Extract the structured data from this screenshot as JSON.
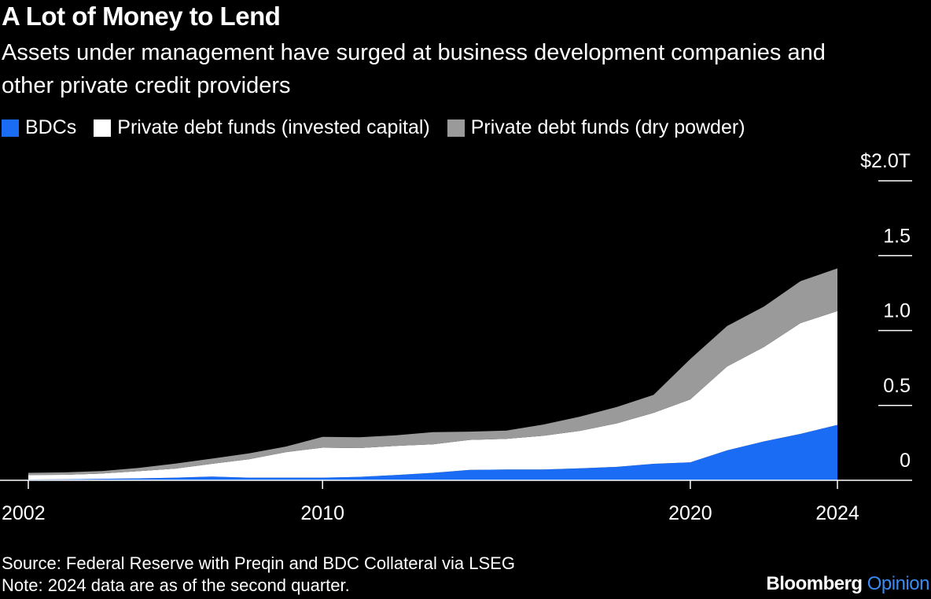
{
  "header": {
    "title": "A Lot of Money to Lend",
    "subtitle": "Assets under management have surged at business development companies and other private credit providers"
  },
  "legend": [
    {
      "label": "BDCs",
      "color": "#1a6cf5"
    },
    {
      "label": "Private debt funds (invested capital)",
      "color": "#ffffff"
    },
    {
      "label": "Private debt funds (dry powder)",
      "color": "#9a9a9a"
    }
  ],
  "footer": {
    "source": "Source: Federal Reserve with Preqin and BDC Collateral via LSEG",
    "note": "Note: 2024 data are as of the second quarter."
  },
  "logo": {
    "brand": "Bloomberg",
    "section": "Opinion",
    "section_color": "#3d8bf2"
  },
  "chart_data": {
    "type": "area",
    "stacked": true,
    "x": [
      2002,
      2003,
      2004,
      2005,
      2006,
      2007,
      2008,
      2009,
      2010,
      2011,
      2012,
      2013,
      2014,
      2015,
      2016,
      2017,
      2018,
      2019,
      2020,
      2021,
      2022,
      2023,
      2024
    ],
    "series": [
      {
        "name": "BDCs",
        "color": "#1a6cf5",
        "values": [
          0.005,
          0.007,
          0.01,
          0.013,
          0.018,
          0.025,
          0.018,
          0.018,
          0.018,
          0.023,
          0.035,
          0.05,
          0.07,
          0.072,
          0.072,
          0.08,
          0.09,
          0.11,
          0.12,
          0.2,
          0.26,
          0.31,
          0.37
        ]
      },
      {
        "name": "Private debt funds (invested capital)",
        "color": "#ffffff",
        "values": [
          0.03,
          0.03,
          0.035,
          0.048,
          0.06,
          0.085,
          0.122,
          0.17,
          0.2,
          0.192,
          0.195,
          0.19,
          0.2,
          0.205,
          0.225,
          0.25,
          0.29,
          0.34,
          0.42,
          0.56,
          0.63,
          0.74,
          0.76
        ]
      },
      {
        "name": "Private debt funds (dry powder)",
        "color": "#9a9a9a",
        "values": [
          0.015,
          0.016,
          0.017,
          0.022,
          0.034,
          0.035,
          0.04,
          0.037,
          0.072,
          0.072,
          0.071,
          0.082,
          0.055,
          0.055,
          0.075,
          0.095,
          0.11,
          0.12,
          0.27,
          0.27,
          0.27,
          0.28,
          0.285
        ]
      }
    ],
    "xticks": [
      "2002",
      "2010",
      "2020",
      "2024"
    ],
    "xtick_values": [
      2002,
      2010,
      2020,
      2024
    ],
    "yticks": [
      "$2.0T",
      "1.5",
      "1.0",
      "0.5",
      "0"
    ],
    "ytick_values": [
      2.0,
      1.5,
      1.0,
      0.5,
      0
    ],
    "ylim": [
      0,
      2.0
    ],
    "xlim": [
      2002,
      2024
    ]
  }
}
